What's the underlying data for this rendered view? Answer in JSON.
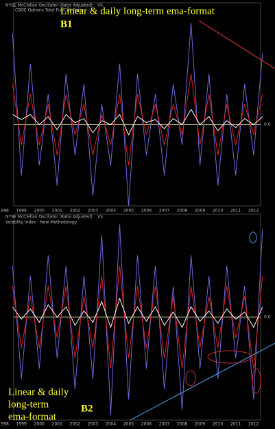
{
  "chart_data": [
    {
      "type": "line",
      "title": "NYSE McClellan Oscillator (Ratio Adjusted)",
      "vs": "VS.",
      "subtitle": "CBOE Options Total Put/Call Ratio",
      "annotation": "Linear & daily long-term ema-format",
      "label": "B1",
      "x": [
        1998.5,
        1999,
        1999.5,
        2000,
        2000.5,
        2001,
        2001.5,
        2002,
        2002.5,
        2003,
        2003.5,
        2004,
        2004.5,
        2005,
        2005.5,
        2006,
        2006.5,
        2007,
        2007.5,
        2008,
        2008.5,
        2009,
        2009.5,
        2010,
        2010.5,
        2011,
        2011.5,
        2012,
        2012.5
      ],
      "xlim": [
        1997.8,
        2013.2
      ],
      "xticks": [
        1998,
        1999,
        2000,
        2001,
        2002,
        2003,
        2004,
        2005,
        2006,
        2007,
        2008,
        2009,
        2010,
        2011,
        2012
      ],
      "ylim": [
        -0.8,
        1.2
      ],
      "yticks": [
        {
          "value": 0,
          "label": "0.0"
        }
      ],
      "series": [
        {
          "color": "#6a6ae0",
          "values": [
            0.9,
            -0.5,
            0.6,
            -0.4,
            0.3,
            -0.6,
            0.5,
            -0.3,
            0.4,
            -0.7,
            0.2,
            -0.4,
            0.6,
            -0.8,
            0.5,
            -0.3,
            0.3,
            -0.5,
            0.4,
            -0.2,
            1.0,
            -0.4,
            0.5,
            -0.6,
            0.3,
            -0.5,
            0.4,
            -0.3,
            0.7
          ]
        },
        {
          "color": "#e02020",
          "values": [
            0.4,
            -0.2,
            0.3,
            -0.2,
            0.2,
            -0.3,
            0.3,
            -0.1,
            0.2,
            -0.3,
            0.1,
            -0.2,
            0.3,
            -0.4,
            0.3,
            -0.1,
            0.2,
            -0.2,
            0.2,
            -0.1,
            0.5,
            -0.2,
            0.3,
            -0.3,
            0.2,
            -0.2,
            0.2,
            -0.1,
            0.3
          ]
        },
        {
          "color": "#ffffff",
          "values": [
            0.1,
            0.05,
            0.1,
            0,
            0.08,
            -0.05,
            0.1,
            0.02,
            0.06,
            -0.08,
            0.04,
            0,
            0.1,
            -0.1,
            0.08,
            0.02,
            0.05,
            -0.04,
            0.06,
            0,
            0.15,
            0,
            0.08,
            -0.06,
            0.04,
            -0.03,
            0.06,
            0,
            0.08
          ]
        }
      ]
    },
    {
      "type": "line",
      "title": "NYSE McClellan Oscillator (Ratio Adjusted)",
      "vs": "VS.",
      "subtitle": "Volatility Index - New Methodology",
      "annotation": [
        "Linear & daily",
        "long-term",
        "ema-format"
      ],
      "label": "B2",
      "x": [
        1998.5,
        1999,
        1999.5,
        2000,
        2000.5,
        2001,
        2001.5,
        2002,
        2002.5,
        2003,
        2003.5,
        2004,
        2004.5,
        2005,
        2005.5,
        2006,
        2006.5,
        2007,
        2007.5,
        2008,
        2008.5,
        2009,
        2009.5,
        2010,
        2010.5,
        2011,
        2011.5,
        2012,
        2012.5
      ],
      "xlim": [
        1997.8,
        2013.2
      ],
      "xticks": [
        1998,
        1999,
        2000,
        2001,
        2002,
        2003,
        2004,
        2005,
        2006,
        2007,
        2008,
        2009,
        2010,
        2011,
        2012
      ],
      "ylim": [
        -1,
        1
      ],
      "yticks": [
        {
          "value": 0,
          "label": "0.0"
        }
      ],
      "series": [
        {
          "color": "#6a6ae0",
          "values": [
            0.5,
            -0.6,
            0.4,
            -0.5,
            0.6,
            -0.4,
            0.5,
            -0.7,
            0.4,
            -0.6,
            0.8,
            -0.95,
            0.9,
            -0.8,
            0.6,
            -0.5,
            0.5,
            -0.7,
            0.3,
            -0.9,
            0.6,
            -0.5,
            0.4,
            -0.6,
            0.5,
            -0.4,
            0.3,
            -0.8,
            0.85
          ]
        },
        {
          "color": "#e02020",
          "values": [
            0.3,
            -0.3,
            0.2,
            -0.3,
            0.3,
            -0.2,
            0.3,
            -0.4,
            0.2,
            -0.3,
            0.4,
            -0.5,
            0.5,
            -0.4,
            0.3,
            -0.3,
            0.3,
            -0.4,
            0.2,
            -0.5,
            0.3,
            -0.3,
            0.2,
            -0.3,
            0.3,
            -0.2,
            0.2,
            -0.5,
            0.4
          ]
        },
        {
          "color": "#ffffff",
          "values": [
            0.1,
            -0.02,
            0.08,
            -0.05,
            0.12,
            0,
            0.1,
            -0.08,
            0.06,
            -0.05,
            0.15,
            -0.1,
            0.18,
            -0.06,
            0.1,
            -0.04,
            0.1,
            -0.08,
            0.05,
            -0.1,
            0.1,
            -0.04,
            0.06,
            -0.06,
            0.08,
            -0.02,
            0.05,
            -0.1,
            0.1
          ]
        }
      ]
    }
  ]
}
